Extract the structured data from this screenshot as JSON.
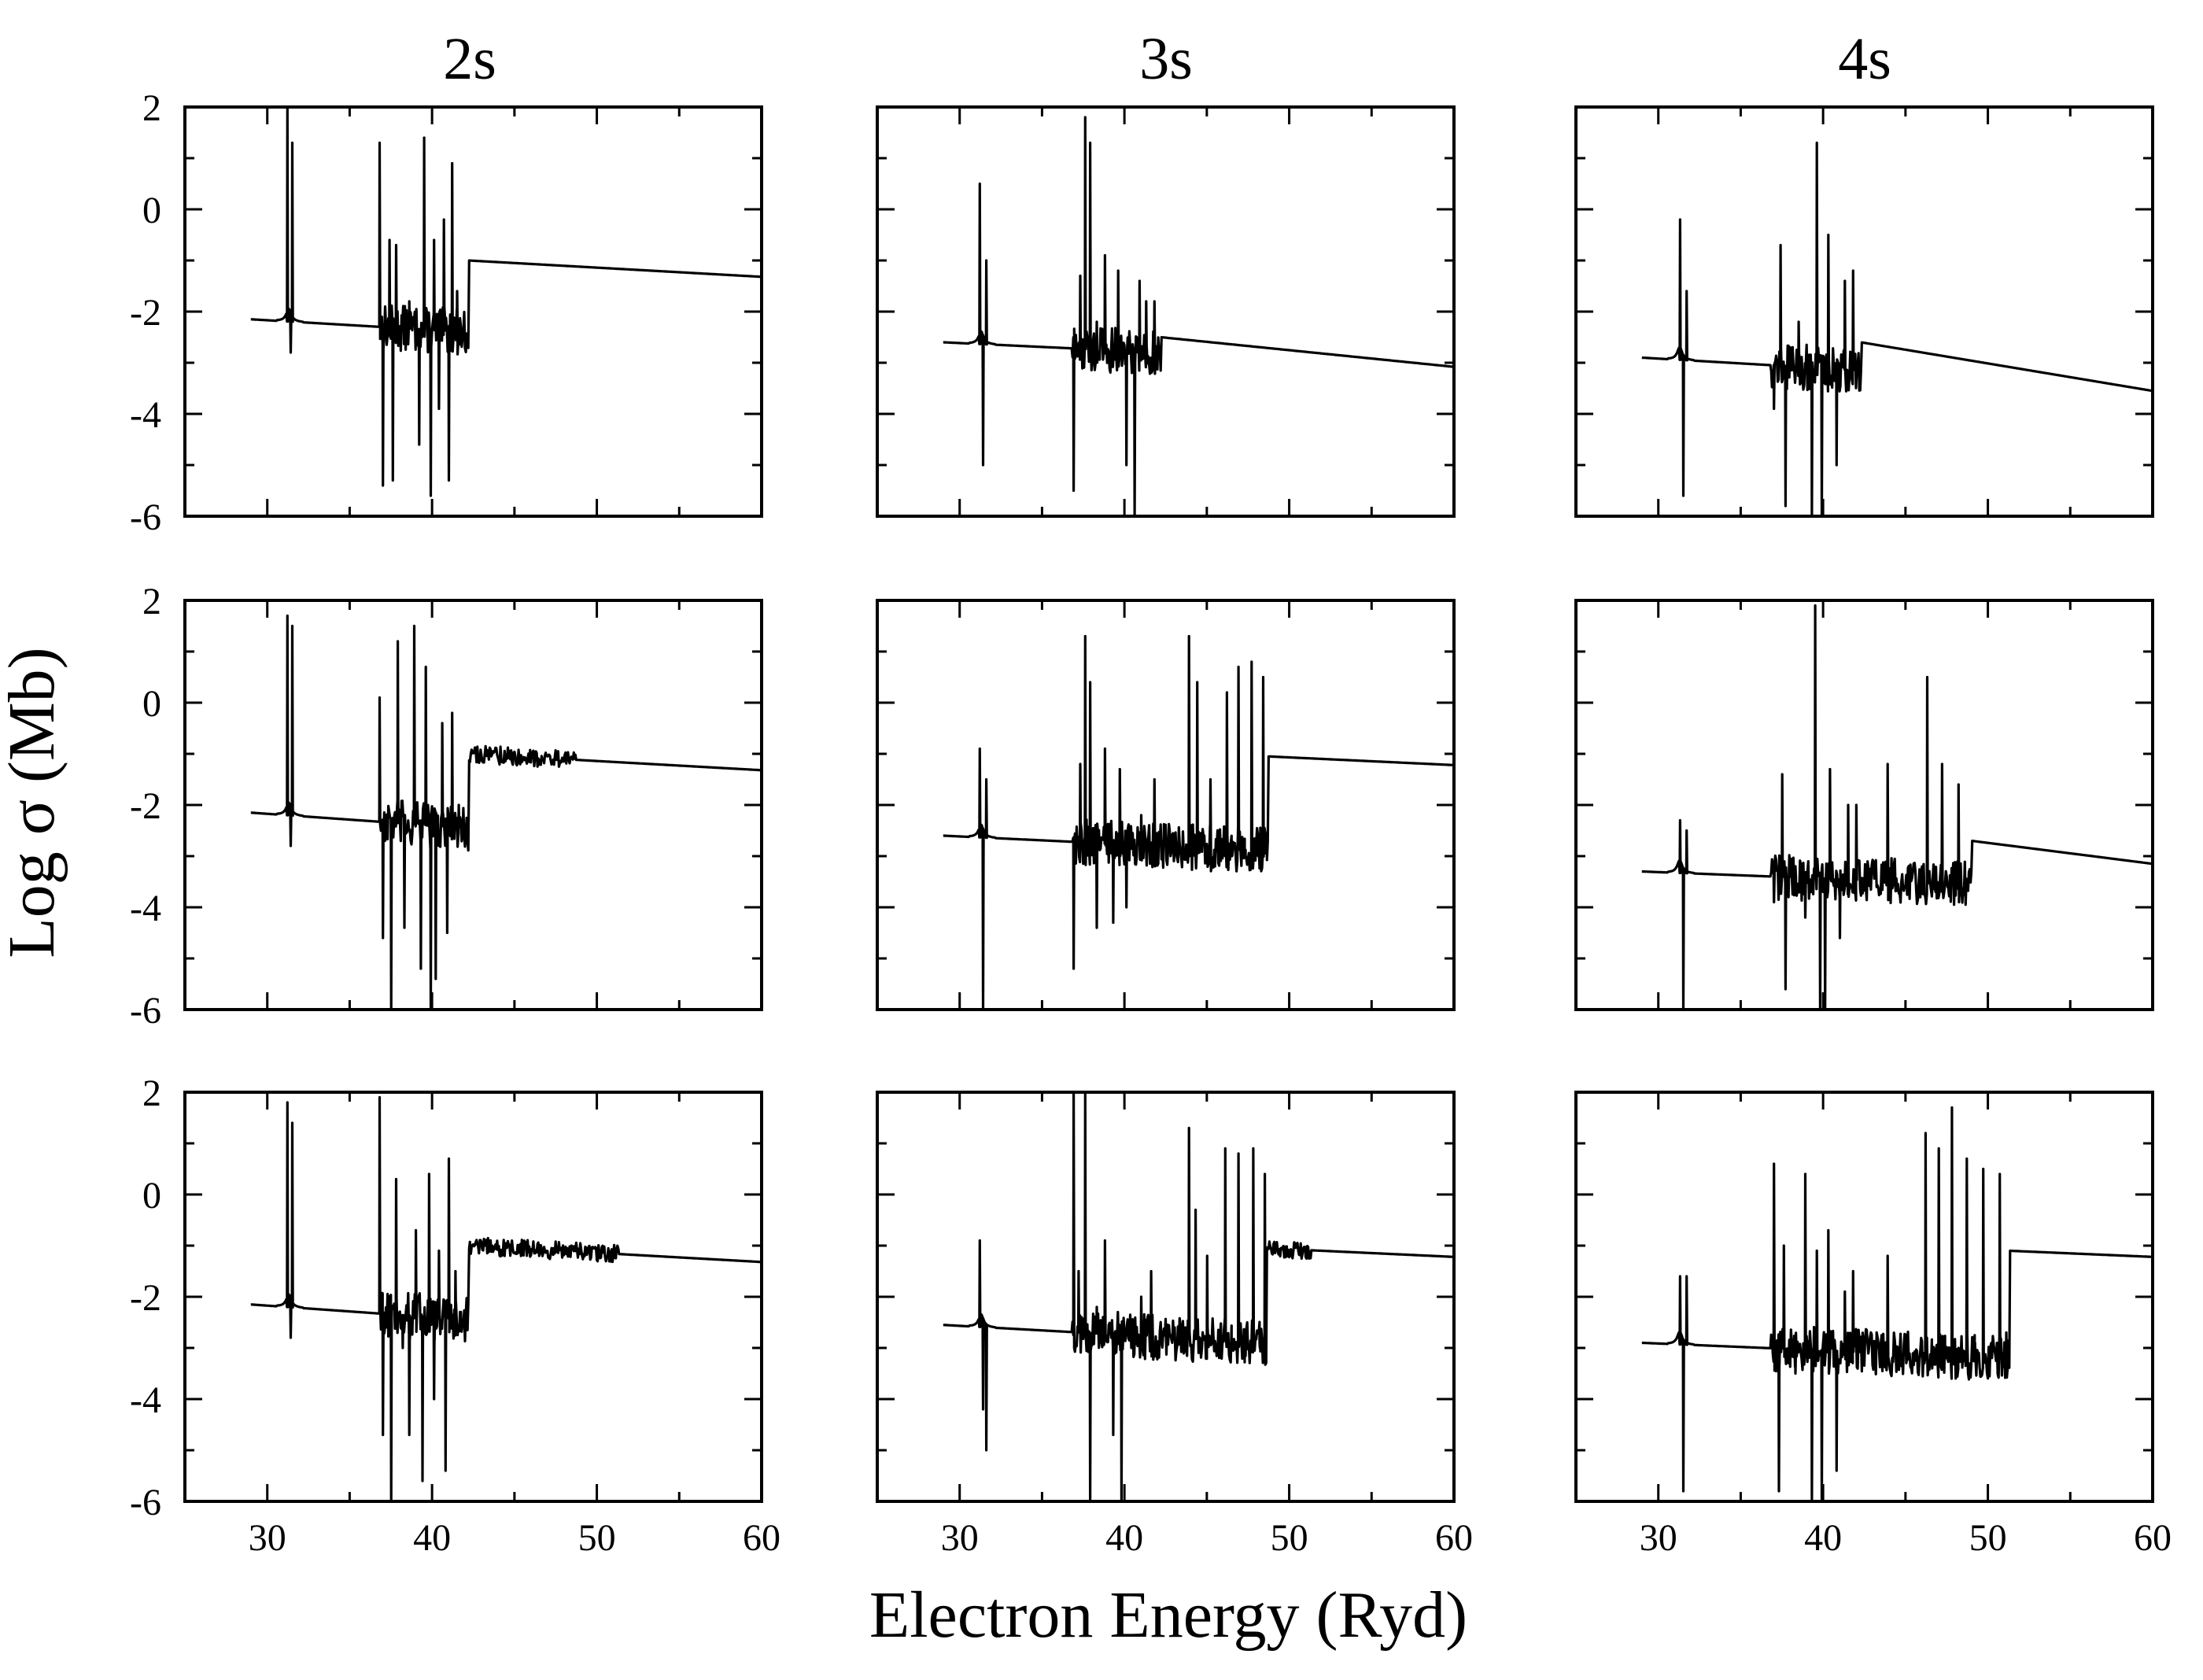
{
  "figure": {
    "xlabel": "Electron Energy (Ryd)",
    "ylabel": "Log σ (Mb)",
    "column_titles": [
      "2s",
      "3s",
      "4s"
    ]
  },
  "chart_data": [
    {
      "type": "line",
      "row": 0,
      "col": 0,
      "title": "2s",
      "xlim": [
        25,
        60
      ],
      "ylim": [
        -6,
        2
      ],
      "xticks": [
        30,
        40,
        50,
        60
      ],
      "yticks": [
        -6,
        -4,
        -2,
        0,
        2
      ],
      "x_tick_labels_shown": false,
      "y_tick_labels_shown": true,
      "background": {
        "start": 29,
        "v_start": -2.15,
        "v_pre_onset": -2.4,
        "jump_at": 42.2,
        "v_jump": -1.0,
        "end": 60,
        "v_end": -1.32,
        "noise_to": 0
      },
      "resonances": [
        [
          31.2,
          2.0
        ],
        [
          31.5,
          1.3
        ],
        [
          31.4,
          -2.8
        ],
        [
          36.8,
          1.3
        ],
        [
          37.0,
          -5.4
        ],
        [
          37.4,
          -0.6
        ],
        [
          37.6,
          -5.3
        ],
        [
          37.8,
          -0.7
        ],
        [
          38.6,
          -1.8
        ],
        [
          39.2,
          -4.6
        ],
        [
          39.5,
          1.4
        ],
        [
          39.9,
          -5.6
        ],
        [
          40.1,
          -0.6
        ],
        [
          40.4,
          -3.9
        ],
        [
          40.7,
          -0.2
        ],
        [
          41.0,
          -5.3
        ],
        [
          41.2,
          0.9
        ],
        [
          41.5,
          -1.6
        ]
      ]
    },
    {
      "type": "line",
      "row": 0,
      "col": 1,
      "title": "3s",
      "xlim": [
        25,
        60
      ],
      "ylim": [
        -6,
        2
      ],
      "xticks": [
        30,
        40,
        50,
        60
      ],
      "yticks": [
        -6,
        -4,
        -2,
        0,
        2
      ],
      "x_tick_labels_shown": false,
      "y_tick_labels_shown": false,
      "background": {
        "start": 29,
        "v_start": -2.6,
        "v_pre_onset": -2.8,
        "jump_at": 42.2,
        "v_jump": -2.5,
        "end": 60,
        "v_end": -3.08,
        "noise_to": 0
      },
      "resonances": [
        [
          31.2,
          0.5
        ],
        [
          31.4,
          -5.0
        ],
        [
          31.6,
          -1.0
        ],
        [
          36.9,
          -5.5
        ],
        [
          37.3,
          -1.3
        ],
        [
          37.6,
          1.8
        ],
        [
          37.9,
          1.3
        ],
        [
          38.3,
          -2.2
        ],
        [
          38.8,
          -0.9
        ],
        [
          39.6,
          -1.2
        ],
        [
          40.1,
          -5.0
        ],
        [
          40.6,
          -6.0
        ],
        [
          40.9,
          -1.4
        ],
        [
          41.3,
          -1.8
        ],
        [
          41.8,
          -1.8
        ]
      ]
    },
    {
      "type": "line",
      "row": 0,
      "col": 2,
      "title": "4s",
      "xlim": [
        25,
        60
      ],
      "ylim": [
        -6,
        2
      ],
      "xticks": [
        30,
        40,
        50,
        60
      ],
      "yticks": [
        -6,
        -4,
        -2,
        0,
        2
      ],
      "x_tick_labels_shown": false,
      "y_tick_labels_shown": false,
      "background": {
        "start": 29,
        "v_start": -2.9,
        "v_pre_onset": -3.15,
        "jump_at": 42.3,
        "v_jump": -2.6,
        "end": 60,
        "v_end": -3.55,
        "noise_to": 0
      },
      "resonances": [
        [
          31.3,
          -0.2
        ],
        [
          31.5,
          -5.6
        ],
        [
          31.7,
          -1.6
        ],
        [
          37.0,
          -3.9
        ],
        [
          37.4,
          -0.7
        ],
        [
          37.7,
          -5.8
        ],
        [
          38.5,
          -2.2
        ],
        [
          39.3,
          -6.0
        ],
        [
          39.6,
          1.3
        ],
        [
          39.9,
          -6.0
        ],
        [
          40.3,
          -0.5
        ],
        [
          40.8,
          -5.0
        ],
        [
          41.3,
          -1.4
        ],
        [
          41.8,
          -1.2
        ]
      ]
    },
    {
      "type": "line",
      "row": 1,
      "col": 0,
      "title": "",
      "xlim": [
        25,
        60
      ],
      "ylim": [
        -6,
        2
      ],
      "xticks": [
        30,
        40,
        50,
        60
      ],
      "yticks": [
        -6,
        -4,
        -2,
        0,
        2
      ],
      "x_tick_labels_shown": false,
      "y_tick_labels_shown": true,
      "background": {
        "start": 29,
        "v_start": -2.15,
        "v_pre_onset": -2.45,
        "jump_at": 42.2,
        "v_jump": -1.0,
        "end": 60,
        "v_end": -1.32,
        "noise_to": 48.7
      },
      "resonances": [
        [
          31.2,
          1.7
        ],
        [
          31.5,
          1.5
        ],
        [
          31.4,
          -2.8
        ],
        [
          36.8,
          0.1
        ],
        [
          37.0,
          -4.6
        ],
        [
          37.5,
          -6.0
        ],
        [
          37.9,
          1.2
        ],
        [
          38.3,
          -4.4
        ],
        [
          38.9,
          1.5
        ],
        [
          39.3,
          -5.2
        ],
        [
          39.6,
          0.7
        ],
        [
          39.9,
          -6.0
        ],
        [
          40.2,
          -5.4
        ],
        [
          40.6,
          -0.4
        ],
        [
          40.9,
          -4.5
        ],
        [
          41.2,
          -0.2
        ],
        [
          41.6,
          -2.0
        ]
      ]
    },
    {
      "type": "line",
      "row": 1,
      "col": 1,
      "title": "",
      "xlim": [
        25,
        60
      ],
      "ylim": [
        -6,
        2
      ],
      "xticks": [
        30,
        40,
        50,
        60
      ],
      "yticks": [
        -6,
        -4,
        -2,
        0,
        2
      ],
      "x_tick_labels_shown": false,
      "y_tick_labels_shown": false,
      "background": {
        "start": 29,
        "v_start": -2.6,
        "v_pre_onset": -2.9,
        "jump_at": 48.7,
        "v_jump": -1.05,
        "end": 60,
        "v_end": -1.22,
        "noise_to": 0
      },
      "resonances": [
        [
          31.2,
          -0.9
        ],
        [
          31.4,
          -6.0
        ],
        [
          31.6,
          -1.5
        ],
        [
          36.9,
          -5.2
        ],
        [
          37.3,
          -1.2
        ],
        [
          37.6,
          1.3
        ],
        [
          37.9,
          0.4
        ],
        [
          38.3,
          -4.4
        ],
        [
          38.8,
          -0.9
        ],
        [
          39.3,
          -4.3
        ],
        [
          39.7,
          -1.3
        ],
        [
          40.1,
          -4.0
        ],
        [
          41.0,
          -2.2
        ],
        [
          41.8,
          -1.5
        ],
        [
          43.9,
          1.3
        ],
        [
          44.4,
          0.4
        ],
        [
          45.2,
          -1.5
        ],
        [
          46.2,
          0.2
        ],
        [
          46.5,
          -3.0
        ],
        [
          46.9,
          0.7
        ],
        [
          47.3,
          -2.9
        ],
        [
          47.7,
          0.8
        ],
        [
          48.1,
          -3.0
        ],
        [
          48.4,
          0.5
        ],
        [
          48.6,
          -2.9
        ]
      ]
    },
    {
      "type": "line",
      "row": 1,
      "col": 2,
      "title": "",
      "xlim": [
        25,
        60
      ],
      "ylim": [
        -6,
        2
      ],
      "xticks": [
        30,
        40,
        50,
        60
      ],
      "yticks": [
        -6,
        -4,
        -2,
        0,
        2
      ],
      "x_tick_labels_shown": false,
      "y_tick_labels_shown": false,
      "background": {
        "start": 29,
        "v_start": -3.3,
        "v_pre_onset": -3.55,
        "jump_at": 49.0,
        "v_jump": -2.7,
        "end": 60,
        "v_end": -3.15,
        "noise_to": 0
      },
      "resonances": [
        [
          31.3,
          -2.3
        ],
        [
          31.5,
          -6.0
        ],
        [
          31.7,
          -2.5
        ],
        [
          37.0,
          -3.9
        ],
        [
          37.5,
          -1.4
        ],
        [
          37.7,
          -5.6
        ],
        [
          38.3,
          -3.2
        ],
        [
          38.9,
          -4.2
        ],
        [
          39.5,
          1.9
        ],
        [
          39.8,
          -6.0
        ],
        [
          40.1,
          -6.0
        ],
        [
          40.4,
          -1.3
        ],
        [
          41.0,
          -4.6
        ],
        [
          41.5,
          -2.0
        ],
        [
          42.0,
          -2.0
        ],
        [
          43.9,
          -1.2
        ],
        [
          46.3,
          0.5
        ],
        [
          46.8,
          -3.7
        ],
        [
          47.2,
          -1.2
        ],
        [
          47.7,
          -3.8
        ],
        [
          48.2,
          -1.6
        ]
      ]
    },
    {
      "type": "line",
      "row": 2,
      "col": 0,
      "title": "",
      "xlim": [
        25,
        60
      ],
      "ylim": [
        -6,
        2
      ],
      "xticks": [
        30,
        40,
        50,
        60
      ],
      "yticks": [
        -6,
        -4,
        -2,
        0,
        2
      ],
      "x_tick_labels_shown": true,
      "y_tick_labels_shown": true,
      "background": {
        "start": 29,
        "v_start": -2.15,
        "v_pre_onset": -2.45,
        "jump_at": 42.2,
        "v_jump": -1.0,
        "end": 60,
        "v_end": -1.32,
        "noise_to": 51.3
      },
      "resonances": [
        [
          31.2,
          1.8
        ],
        [
          31.5,
          1.4
        ],
        [
          31.4,
          -2.8
        ],
        [
          36.8,
          1.9
        ],
        [
          37.0,
          -4.7
        ],
        [
          37.5,
          -6.0
        ],
        [
          37.8,
          0.3
        ],
        [
          38.2,
          -3.0
        ],
        [
          38.6,
          -4.7
        ],
        [
          39.0,
          -0.7
        ],
        [
          39.4,
          -5.6
        ],
        [
          39.8,
          0.4
        ],
        [
          40.1,
          -4.0
        ],
        [
          40.4,
          -1.1
        ],
        [
          40.8,
          -5.4
        ],
        [
          41.0,
          0.7
        ],
        [
          41.4,
          -1.5
        ]
      ]
    },
    {
      "type": "line",
      "row": 2,
      "col": 1,
      "title": "",
      "xlim": [
        25,
        60
      ],
      "ylim": [
        -6,
        2
      ],
      "xticks": [
        30,
        40,
        50,
        60
      ],
      "yticks": [
        -6,
        -4,
        -2,
        0,
        2
      ],
      "x_tick_labels_shown": true,
      "y_tick_labels_shown": false,
      "background": {
        "start": 29,
        "v_start": -2.55,
        "v_pre_onset": -2.9,
        "jump_at": 48.6,
        "v_jump": -1.05,
        "end": 60,
        "v_end": -1.22,
        "noise_to": 51.3
      },
      "resonances": [
        [
          31.2,
          -0.9
        ],
        [
          31.4,
          -4.2
        ],
        [
          31.6,
          -5.0
        ],
        [
          36.9,
          2.0
        ],
        [
          37.2,
          -1.5
        ],
        [
          37.6,
          2.0
        ],
        [
          37.9,
          -6.0
        ],
        [
          38.3,
          -2.2
        ],
        [
          38.8,
          -0.9
        ],
        [
          39.3,
          -4.7
        ],
        [
          39.8,
          -6.0
        ],
        [
          40.4,
          -3.0
        ],
        [
          41.0,
          -2.0
        ],
        [
          41.6,
          -1.5
        ],
        [
          43.9,
          1.3
        ],
        [
          44.3,
          -0.3
        ],
        [
          45.0,
          -1.2
        ],
        [
          46.1,
          0.9
        ],
        [
          46.5,
          -3.0
        ],
        [
          46.9,
          0.8
        ],
        [
          47.3,
          -2.9
        ],
        [
          47.8,
          0.9
        ],
        [
          48.2,
          -3.0
        ],
        [
          48.5,
          0.4
        ]
      ]
    },
    {
      "type": "line",
      "row": 2,
      "col": 2,
      "title": "",
      "xlim": [
        25,
        60
      ],
      "ylim": [
        -6,
        2
      ],
      "xticks": [
        30,
        40,
        50,
        60
      ],
      "yticks": [
        -6,
        -4,
        -2,
        0,
        2
      ],
      "x_tick_labels_shown": true,
      "y_tick_labels_shown": false,
      "background": {
        "start": 29,
        "v_start": -2.9,
        "v_pre_onset": -3.2,
        "jump_at": 51.3,
        "v_jump": -1.1,
        "end": 60,
        "v_end": -1.22,
        "noise_to": 0
      },
      "resonances": [
        [
          31.3,
          -1.6
        ],
        [
          31.5,
          -5.8
        ],
        [
          31.7,
          -1.6
        ],
        [
          37.0,
          0.6
        ],
        [
          37.3,
          -5.8
        ],
        [
          37.6,
          -1.0
        ],
        [
          38.3,
          -3.5
        ],
        [
          38.9,
          0.4
        ],
        [
          39.3,
          -6.0
        ],
        [
          39.6,
          -1.1
        ],
        [
          39.9,
          -6.0
        ],
        [
          40.3,
          -0.7
        ],
        [
          40.8,
          -5.4
        ],
        [
          41.3,
          -1.9
        ],
        [
          41.8,
          -1.5
        ],
        [
          43.9,
          -1.2
        ],
        [
          46.2,
          1.2
        ],
        [
          46.6,
          -3.4
        ],
        [
          47.0,
          0.9
        ],
        [
          47.4,
          -3.2
        ],
        [
          47.8,
          1.7
        ],
        [
          48.2,
          -3.0
        ],
        [
          48.7,
          0.7
        ],
        [
          49.2,
          -2.9
        ],
        [
          49.7,
          0.5
        ],
        [
          50.2,
          -2.9
        ],
        [
          50.7,
          0.4
        ],
        [
          51.1,
          -2.7
        ]
      ]
    }
  ]
}
